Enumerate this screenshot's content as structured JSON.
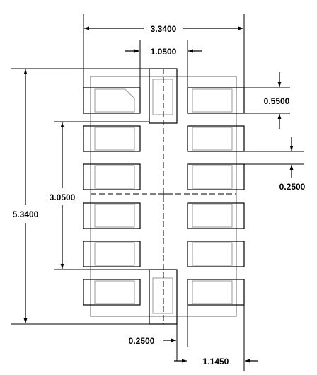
{
  "colors": {
    "outline": "#9a9a9a",
    "pad": "#000000",
    "dim": "#000000",
    "background": "#ffffff"
  },
  "dimensions": {
    "total_width": "3.3400",
    "center_pad_width": "1.0500",
    "pad_height": "0.5500",
    "pad_gap": "0.2500",
    "pitch_span": "3.0500",
    "total_height": "5.3400",
    "center_pad_gap": "0.2500",
    "pad_length": "1.1450"
  }
}
